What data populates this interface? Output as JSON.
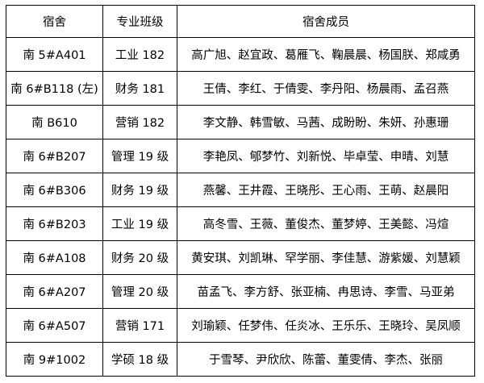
{
  "headers": [
    "宿舍",
    "专业班级",
    "宿舍成员"
  ],
  "rows": [
    [
      "南 5#A401",
      "工业 182",
      "高广旭、赵宜政、葛雁飞、鞠晨晨、杨国朕、郑咸勇"
    ],
    [
      "南 6#B118 (左)",
      "财务 181",
      "王倩、李红、于倩雯、李丹阳、杨晨雨、孟召燕"
    ],
    [
      "南 B610",
      "营销 182",
      "李文静、韩雪敏、马茜、成盼盼、朱妍、孙惠珊"
    ],
    [
      "南 6#B207",
      "管理 19 级",
      "李艳凤、郇梦竹、刘新悦、毕卓莹、申晴、刘慧"
    ],
    [
      "南 6#B306",
      "财务 19 级",
      "燕馨、王井霞、王晓彤、王心雨、王萌、赵晨阳"
    ],
    [
      "南 6#B203",
      "工业 19 级",
      "高冬雪、王薇、董俊杰、董梦婷、王美懿、冯煊"
    ],
    [
      "南 6#A108",
      "财务 20 级",
      "黄安琪、刘凯琳、罕学丽、李佳慧、游紫媛、刘慧颖"
    ],
    [
      "南 6#A207",
      "管理 20 级",
      "苗孟飞、李方舒、张亚楠、冉思诗、李雪、马亚弟"
    ],
    [
      "南 6#A507",
      "营销 171",
      "刘瑜颖、任梦伟、任炎冰、王乐乐、王晓玲、吴凤顺"
    ],
    [
      "南 9#1002",
      "学硕 18 级",
      "于雪琴、尹欣欣、陈蕾、董雯倩、李杰、张丽"
    ]
  ]
}
